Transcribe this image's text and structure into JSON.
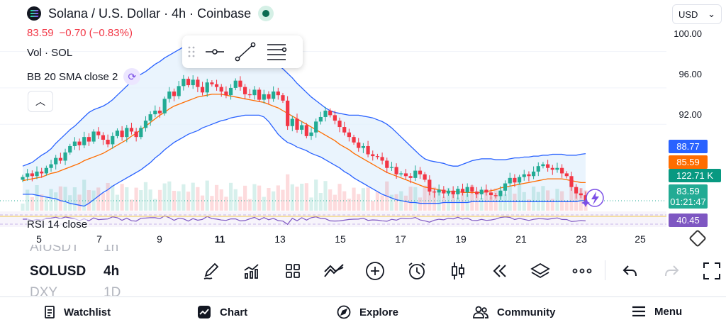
{
  "header": {
    "title": "Solana / U.S. Dollar · 4h · Coinbase",
    "price": "83.59",
    "change": "−0.70 (−0.83%)",
    "volume_label": "Vol · SOL",
    "bb_label": "BB 20 SMA close 2",
    "currency": "USD"
  },
  "price_axis": [
    "100.00",
    "96.00",
    "92.00"
  ],
  "tags": {
    "bb_upper": "88.77",
    "bb_middle": "85.59",
    "volume": "122.71 K",
    "price": "83.59",
    "countdown": "01:21:47",
    "rsi": "40.45"
  },
  "colors": {
    "up": "#22ab94",
    "down": "#f23645",
    "bb_band": "#2962ff",
    "bb_basis": "#ff6d00",
    "bb_fill": "#e3f0fc",
    "rsi": "#7e57c2",
    "tag_volume": "#089981",
    "tag_price": "#22ab94"
  },
  "rsi_label": "RSI 14 close",
  "dates": [
    {
      "label": "5",
      "bold": false
    },
    {
      "label": "7",
      "bold": false
    },
    {
      "label": "9",
      "bold": false
    },
    {
      "label": "11",
      "bold": true
    },
    {
      "label": "13",
      "bold": false
    },
    {
      "label": "15",
      "bold": false
    },
    {
      "label": "17",
      "bold": false
    },
    {
      "label": "19",
      "bold": false
    },
    {
      "label": "21",
      "bold": false
    },
    {
      "label": "23",
      "bold": false
    },
    {
      "label": "25",
      "bold": false
    }
  ],
  "symbols": [
    {
      "symbol": "AIUSDT",
      "interval": "1h",
      "state": "faded"
    },
    {
      "symbol": "SOLUSD",
      "interval": "4h",
      "state": "active"
    },
    {
      "symbol": "DXY",
      "interval": "1D",
      "state": "faded"
    }
  ],
  "toolbar_icons": [
    "pencil-icon",
    "indicators-icon",
    "layouts-icon",
    "trend-icon",
    "add-icon",
    "alarm-icon",
    "candles-icon",
    "replay-icon",
    "layers-icon",
    "more-icon",
    "undo-icon",
    "redo-icon",
    "fullscreen-icon"
  ],
  "nav": [
    {
      "label": "Watchlist",
      "icon": "watchlist-icon"
    },
    {
      "label": "Chart",
      "icon": "chart-icon"
    },
    {
      "label": "Explore",
      "icon": "explore-icon"
    },
    {
      "label": "Community",
      "icon": "community-icon"
    },
    {
      "label": "Menu",
      "icon": "menu-icon"
    }
  ],
  "chart_data": {
    "type": "candlestick",
    "title": "Solana / U.S. Dollar · 4h · Coinbase",
    "ylim": [
      82.5,
      102
    ],
    "y_ticks": [
      100,
      96,
      92
    ],
    "x_ticks": [
      "5",
      "7",
      "9",
      "11",
      "13",
      "15",
      "17",
      "19",
      "21",
      "23",
      "25"
    ],
    "closes": [
      86.2,
      86.6,
      86.3,
      86.8,
      86.6,
      87.2,
      87.6,
      88.3,
      88.0,
      88.9,
      89.6,
      90.1,
      89.7,
      90.6,
      90.1,
      91.2,
      90.8,
      90.3,
      89.8,
      90.7,
      91.3,
      90.6,
      91.6,
      91.2,
      90.6,
      91.6,
      92.4,
      93.1,
      93.5,
      93.2,
      94.8,
      95.6,
      95.1,
      96.2,
      97.0,
      96.3,
      96.9,
      96.1,
      95.5,
      96.6,
      96.4,
      96.1,
      95.6,
      95.2,
      96.0,
      96.8,
      96.1,
      95.3,
      95.2,
      95.8,
      94.7,
      95.3,
      94.8,
      95.6,
      95.2,
      94.6,
      91.8,
      92.6,
      91.4,
      91.9,
      90.7,
      91.1,
      92.3,
      92.8,
      93.5,
      93.0,
      92.4,
      91.7,
      91.1,
      90.6,
      90.0,
      89.4,
      89.6,
      88.7,
      88.5,
      88.4,
      88.0,
      87.2,
      87.3,
      86.5,
      86.6,
      86.3,
      86.1,
      86.9,
      86.5,
      85.9,
      84.6,
      84.5,
      84.8,
      84.4,
      84.7,
      84.3,
      84.9,
      84.5,
      85.1,
      84.6,
      84.3,
      84.8,
      84.5,
      84.2,
      84.1,
      84.7,
      85.5,
      86.1,
      85.6,
      86.2,
      86.5,
      86.3,
      86.8,
      87.4,
      87.6,
      87.2,
      87.0,
      87.2,
      86.6,
      86.3,
      85.1,
      84.4,
      84.2,
      83.59
    ],
    "bb_upper": [
      87.4,
      87.6,
      87.8,
      88.2,
      88.6,
      88.9,
      89.3,
      89.9,
      90.4,
      90.9,
      91.4,
      91.8,
      92.3,
      92.8,
      93.3,
      93.6,
      93.8,
      94.0,
      94.3,
      94.7,
      95.2,
      95.7,
      96.2,
      96.7,
      97.1,
      97.5,
      97.8,
      98.2,
      98.6,
      98.9,
      99.3,
      99.6,
      99.9,
      100.2,
      100.5,
      100.7,
      100.8,
      100.8,
      100.8,
      100.7,
      100.6,
      100.5,
      100.4,
      100.3,
      100.2,
      100.1,
      100.0,
      99.9,
      99.8,
      99.8,
      99.8,
      99.6,
      99.3,
      98.9,
      98.5,
      98.1,
      97.6,
      97.1,
      96.5,
      96.0,
      95.5,
      95.0,
      94.6,
      94.2,
      93.8,
      93.5,
      93.3,
      93.2,
      93.1,
      93.0,
      93.0,
      93.0,
      92.9,
      92.8,
      92.7,
      92.5,
      92.3,
      92.0,
      91.6,
      91.1,
      90.6,
      90.1,
      89.6,
      89.1,
      88.6,
      88.2,
      88.0,
      87.9,
      87.8,
      87.7,
      87.5,
      87.4,
      87.4,
      87.6,
      87.8,
      88.0,
      88.1,
      88.2,
      88.2,
      88.2,
      88.1,
      88.1,
      88.1,
      88.2,
      88.3,
      88.3,
      88.4,
      88.4,
      88.5,
      88.5,
      88.6,
      88.6,
      88.7,
      88.7,
      88.7,
      88.6,
      88.6,
      88.6,
      88.7,
      88.77
    ],
    "bb_basis": [
      85.8,
      85.9,
      86.0,
      86.1,
      86.2,
      86.4,
      86.6,
      86.7,
      86.9,
      87.1,
      87.3,
      87.5,
      87.7,
      88.0,
      88.2,
      88.4,
      88.6,
      88.8,
      89.1,
      89.4,
      89.7,
      90.0,
      90.3,
      90.7,
      91.0,
      91.4,
      91.8,
      92.2,
      92.6,
      93.0,
      93.3,
      93.7,
      94.0,
      94.2,
      94.4,
      94.6,
      94.8,
      95.0,
      95.1,
      95.2,
      95.3,
      95.3,
      95.3,
      95.2,
      95.1,
      95.0,
      94.9,
      94.8,
      94.7,
      94.6,
      94.5,
      94.4,
      94.2,
      94.0,
      93.8,
      93.5,
      93.2,
      92.9,
      92.6,
      92.3,
      92.0,
      91.7,
      91.4,
      91.1,
      90.8,
      90.5,
      90.2,
      89.8,
      89.5,
      89.2,
      88.8,
      88.5,
      88.2,
      87.9,
      87.6,
      87.3,
      87.0,
      86.7,
      86.5,
      86.3,
      86.1,
      85.9,
      85.7,
      85.5,
      85.3,
      85.1,
      85.0,
      84.9,
      84.8,
      84.7,
      84.6,
      84.6,
      84.6,
      84.5,
      84.5,
      84.5,
      84.5,
      84.5,
      84.6,
      84.7,
      84.8,
      85.0,
      85.1,
      85.2,
      85.3,
      85.4,
      85.5,
      85.6,
      85.7,
      85.8,
      85.9,
      86.0,
      86.0,
      86.0,
      86.0,
      85.9,
      85.8,
      85.7,
      85.6,
      85.59
    ],
    "bb_lower": [
      84.3,
      84.3,
      84.3,
      84.2,
      84.1,
      84.0,
      83.9,
      83.8,
      83.6,
      83.5,
      83.3,
      83.2,
      83.1,
      83.0,
      83.3,
      83.7,
      84.1,
      84.5,
      84.8,
      85.2,
      85.5,
      85.8,
      86.1,
      86.4,
      86.7,
      87.0,
      87.4,
      87.8,
      88.3,
      88.7,
      89.2,
      89.6,
      90.0,
      90.3,
      90.6,
      90.9,
      91.1,
      91.3,
      91.6,
      91.8,
      92.0,
      92.2,
      92.4,
      92.5,
      92.7,
      92.8,
      92.9,
      93.0,
      93.0,
      93.0,
      93.0,
      92.8,
      92.3,
      91.6,
      90.9,
      90.4,
      90.0,
      89.8,
      89.5,
      89.3,
      89.1,
      88.8,
      88.6,
      88.4,
      88.1,
      87.8,
      87.5,
      87.2,
      86.8,
      86.5,
      86.1,
      85.8,
      85.5,
      85.2,
      84.9,
      84.6,
      84.3,
      84.1,
      83.9,
      83.7,
      83.6,
      83.5,
      83.4,
      83.4,
      83.3,
      83.3,
      83.3,
      83.3,
      83.3,
      83.4,
      83.4,
      83.4,
      83.4,
      83.4,
      83.4,
      83.5,
      83.5,
      83.5,
      83.5,
      83.5,
      83.5,
      83.5,
      83.5,
      83.5,
      83.5,
      83.5,
      83.5,
      83.5,
      83.5,
      83.5,
      83.5,
      83.5,
      83.5,
      83.5,
      83.5,
      83.5,
      83.5,
      83.5,
      83.6,
      83.6
    ],
    "last_price": 83.59,
    "rsi_last": 40.45
  }
}
